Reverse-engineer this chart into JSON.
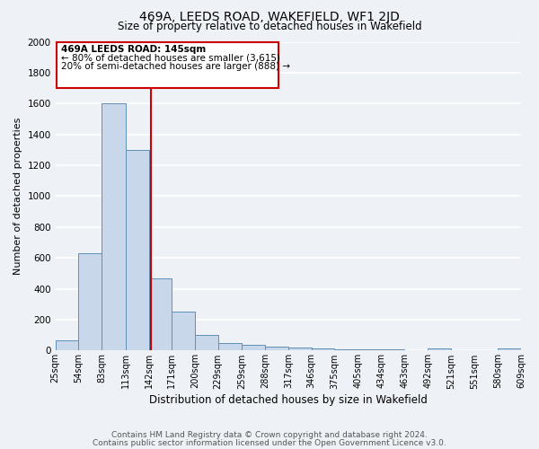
{
  "title": "469A, LEEDS ROAD, WAKEFIELD, WF1 2JD",
  "subtitle": "Size of property relative to detached houses in Wakefield",
  "xlabel": "Distribution of detached houses by size in Wakefield",
  "ylabel": "Number of detached properties",
  "bar_color": "#c8d8ea",
  "bar_edge_color": "#6090b8",
  "background_color": "#eef2f7",
  "grid_color": "#ffffff",
  "bins": [
    25,
    54,
    83,
    113,
    142,
    171,
    200,
    229,
    259,
    288,
    317,
    346,
    375,
    405,
    434,
    463,
    492,
    521,
    551,
    580,
    609
  ],
  "bin_labels": [
    "25sqm",
    "54sqm",
    "83sqm",
    "113sqm",
    "142sqm",
    "171sqm",
    "200sqm",
    "229sqm",
    "259sqm",
    "288sqm",
    "317sqm",
    "346sqm",
    "375sqm",
    "405sqm",
    "434sqm",
    "463sqm",
    "492sqm",
    "521sqm",
    "551sqm",
    "580sqm",
    "609sqm"
  ],
  "values": [
    65,
    630,
    1600,
    1300,
    470,
    250,
    100,
    50,
    35,
    25,
    20,
    15,
    10,
    10,
    10,
    0,
    15,
    0,
    0,
    15
  ],
  "vline_x": 145,
  "vline_color": "#cc0000",
  "ylim": [
    0,
    2000
  ],
  "yticks": [
    0,
    200,
    400,
    600,
    800,
    1000,
    1200,
    1400,
    1600,
    1800,
    2000
  ],
  "annotation_title": "469A LEEDS ROAD: 145sqm",
  "annotation_line1": "← 80% of detached houses are smaller (3,615)",
  "annotation_line2": "20% of semi-detached houses are larger (888) →",
  "annotation_box_color": "#ffffff",
  "annotation_box_edge": "#cc0000",
  "footer1": "Contains HM Land Registry data © Crown copyright and database right 2024.",
  "footer2": "Contains public sector information licensed under the Open Government Licence v3.0."
}
